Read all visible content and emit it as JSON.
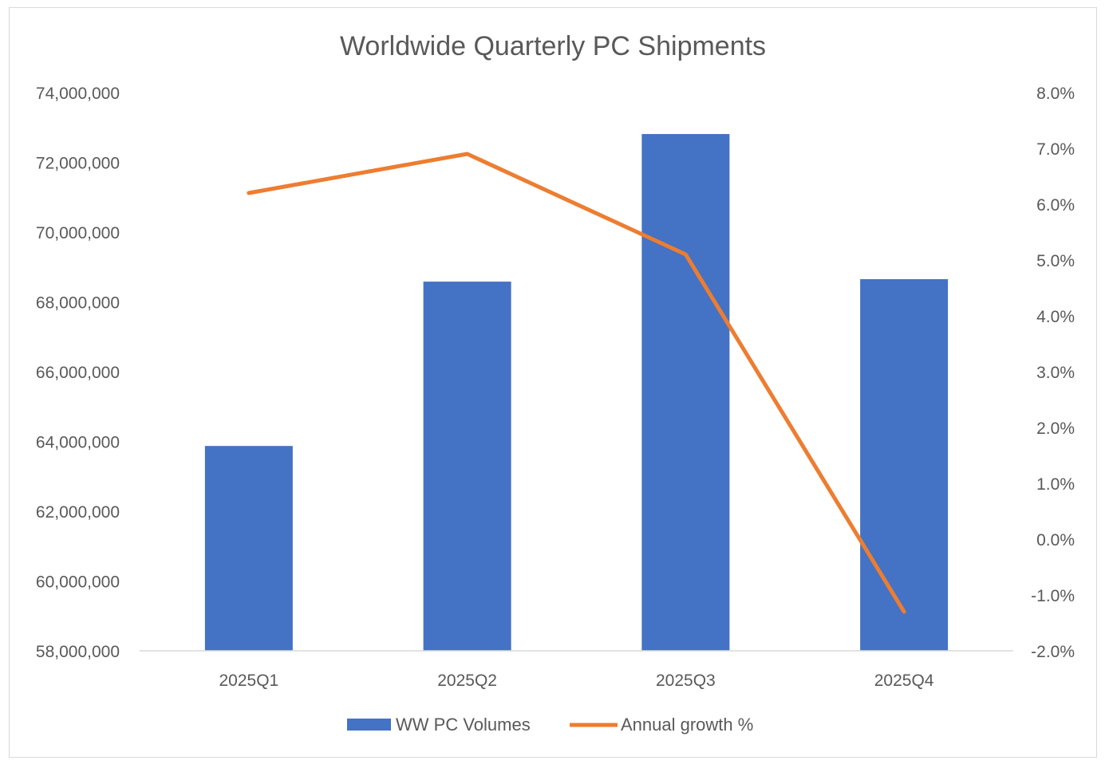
{
  "chart_data": {
    "type": "bar+line",
    "title": "Worldwide Quarterly PC Shipments",
    "categories": [
      "2025Q1",
      "2025Q2",
      "2025Q3",
      "2025Q4"
    ],
    "series": [
      {
        "name": "WW PC Volumes",
        "type": "bar",
        "axis": "left",
        "color": "#4472C4",
        "values": [
          63870000,
          68580000,
          72810000,
          68650000
        ]
      },
      {
        "name": "Annual growth %",
        "type": "line",
        "axis": "right",
        "color": "#ED7D31",
        "values": [
          6.2,
          6.9,
          5.1,
          -1.3
        ]
      }
    ],
    "left_axis": {
      "ylim": [
        58000000,
        74000000
      ],
      "ticks": [
        "58,000,000",
        "60,000,000",
        "62,000,000",
        "64,000,000",
        "66,000,000",
        "68,000,000",
        "70,000,000",
        "72,000,000",
        "74,000,000"
      ]
    },
    "right_axis": {
      "ylim": [
        -2.0,
        8.0
      ],
      "ticks": [
        "-2.0%",
        "-1.0%",
        "0.0%",
        "1.0%",
        "2.0%",
        "3.0%",
        "4.0%",
        "5.0%",
        "6.0%",
        "7.0%",
        "8.0%"
      ]
    },
    "grid": false,
    "legend_position": "bottom"
  }
}
